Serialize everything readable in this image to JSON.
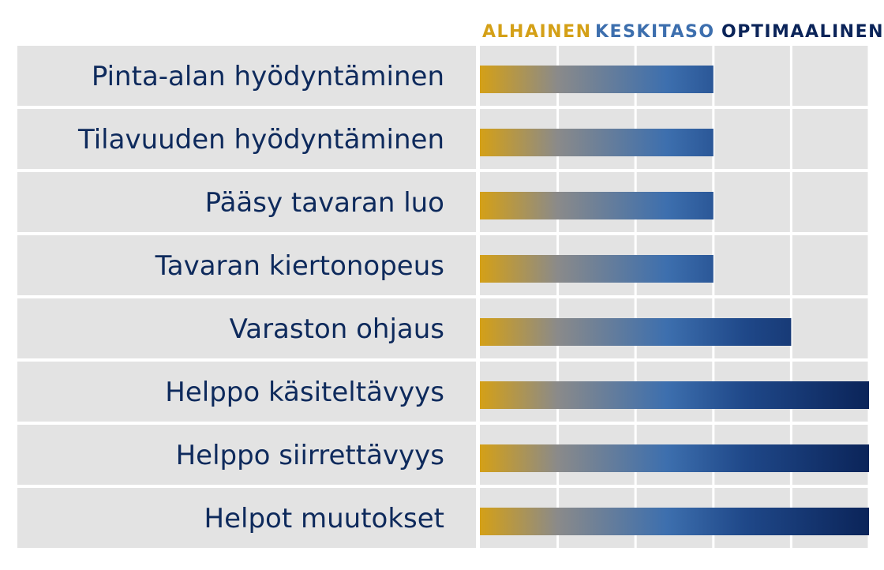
{
  "chart_data": {
    "type": "bar",
    "orientation": "horizontal",
    "legend_position": "top",
    "levels": [
      {
        "label": "ALHAINEN",
        "color": "#d4a017"
      },
      {
        "label": "KESKITASO",
        "color": "#3d6fae"
      },
      {
        "label": "OPTIMAALINEN",
        "color": "#0b2459"
      }
    ],
    "categories": [
      "Pinta-alan hyödyntäminen",
      "Tilavuuden hyödyntäminen",
      "Pääsy tavaran luo",
      "Tavaran kiertonopeus",
      "Varaston ohjaus",
      "Helppo käsiteltävyys",
      "Helppo siirrettävyys",
      "Helpot muutokset"
    ],
    "values": [
      3,
      3,
      3,
      3,
      4,
      5,
      5,
      5
    ],
    "xlim": [
      0,
      5
    ],
    "grid": true,
    "colors": {
      "label_text": "#0e2a5c",
      "cell_bg": "#e3e3e3",
      "bar_start": "#d4a017",
      "bar_mid_gray": "#8a8a8a",
      "bar_mid_blue": "#3d6fae",
      "bar_end": "#0b2459"
    }
  }
}
